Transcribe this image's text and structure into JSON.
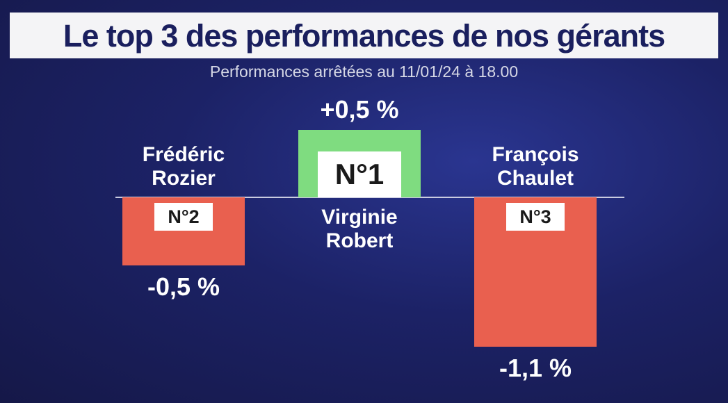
{
  "chart_data": {
    "type": "bar",
    "title": "Le top 3 des performances de nos gérants",
    "subtitle": "Performances arrêtées au 11/01/24 à 18.00",
    "categories": [
      "Frédéric Rozier",
      "Virginie Robert",
      "François Chaulet"
    ],
    "ranks": [
      "N°2",
      "N°1",
      "N°3"
    ],
    "values": [
      -0.5,
      0.5,
      -1.1
    ],
    "value_labels": [
      "-0,5 %",
      "+0,5 %",
      "-1,1 %"
    ],
    "colors": {
      "positive": "#7fdc80",
      "negative": "#e9604f"
    }
  }
}
